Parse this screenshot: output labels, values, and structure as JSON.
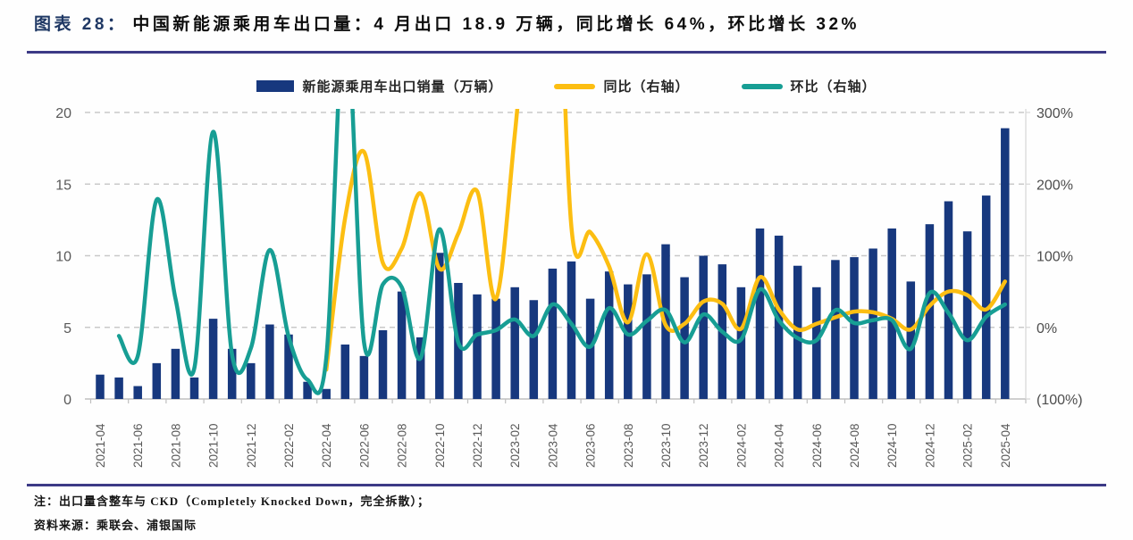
{
  "title": {
    "prefix": "图表 28：",
    "text": "中国新能源乘用车出口量：4 月出口 18.9 万辆，同比增长 64%，环比增长 32%"
  },
  "legend": {
    "items": [
      {
        "label": "新能源乘用车出口销量（万辆）",
        "marker": "bar",
        "color": "#17387E"
      },
      {
        "label": "同比（右轴）",
        "marker": "line",
        "color": "#FCBE12"
      },
      {
        "label": "环比（右轴）",
        "marker": "line",
        "color": "#179E94"
      }
    ]
  },
  "notes": [
    "注：出口量含整车与 CKD（Completely Knocked Down，完全拆散）；",
    "资料来源：乘联会、浦银国际"
  ],
  "chart_data": {
    "type": "bar",
    "title": "中国新能源乘用车出口量",
    "categories": [
      "2021-04",
      "2021-05",
      "2021-06",
      "2021-07",
      "2021-08",
      "2021-09",
      "2021-10",
      "2021-11",
      "2021-12",
      "2022-01",
      "2022-02",
      "2022-03",
      "2022-04",
      "2022-05",
      "2022-06",
      "2022-07",
      "2022-08",
      "2022-09",
      "2022-10",
      "2022-11",
      "2022-12",
      "2023-01",
      "2023-02",
      "2023-03",
      "2023-04",
      "2023-05",
      "2023-06",
      "2023-07",
      "2023-08",
      "2023-09",
      "2023-10",
      "2023-11",
      "2023-12",
      "2024-01",
      "2024-02",
      "2024-03",
      "2024-04",
      "2024-05",
      "2024-06",
      "2024-07",
      "2024-08",
      "2024-09",
      "2024-10",
      "2024-11",
      "2024-12",
      "2025-01",
      "2025-02",
      "2025-03",
      "2025-04"
    ],
    "x_label_step": 2,
    "series": [
      {
        "name": "新能源乘用车出口销量（万辆）",
        "type": "bar",
        "axis": "left",
        "color": "#17387E",
        "values": [
          1.7,
          1.5,
          0.9,
          2.5,
          3.5,
          1.5,
          5.6,
          3.5,
          2.5,
          5.2,
          4.5,
          1.2,
          0.7,
          3.8,
          3.0,
          4.8,
          7.5,
          4.3,
          10.2,
          8.1,
          7.3,
          7.0,
          7.8,
          6.9,
          9.1,
          9.6,
          7.0,
          8.9,
          8.0,
          8.7,
          10.8,
          8.5,
          10.0,
          9.4,
          7.8,
          11.9,
          11.4,
          9.3,
          7.8,
          9.7,
          9.9,
          10.5,
          11.9,
          8.2,
          12.2,
          13.8,
          11.7,
          14.2,
          18.9
        ]
      },
      {
        "name": "同比（右轴）",
        "type": "line",
        "axis": "right",
        "color": "#FCBE12",
        "unit": "%",
        "values": [
          null,
          null,
          null,
          null,
          null,
          null,
          null,
          null,
          null,
          null,
          null,
          null,
          -59,
          153,
          245,
          90,
          110,
          187,
          82,
          131,
          190,
          40,
          270,
          550,
          700,
          140,
          133,
          85,
          7,
          102,
          3,
          5,
          36,
          33,
          -2,
          70,
          25,
          -3,
          5,
          14,
          22,
          21,
          12,
          -3,
          30,
          50,
          45,
          25,
          64
        ]
      },
      {
        "name": "环比（右轴）",
        "type": "line",
        "axis": "right",
        "color": "#179E94",
        "unit": "%",
        "values": [
          null,
          -12,
          -40,
          178,
          40,
          -57,
          273,
          -38,
          -29,
          108,
          -13,
          -73,
          -42,
          443,
          -21,
          60,
          56,
          -43,
          137,
          -21,
          -10,
          -4,
          11,
          -12,
          32,
          5,
          -27,
          27,
          -10,
          9,
          24,
          -21,
          18,
          -6,
          -17,
          53,
          10,
          -15,
          -18,
          24,
          6,
          10,
          10,
          -30,
          48,
          20,
          -18,
          15,
          32
        ]
      }
    ],
    "left_axis": {
      "min": 0,
      "max": 20,
      "ticks": [
        0,
        5,
        10,
        15,
        20
      ],
      "tick_labels": [
        "0",
        "5",
        "10",
        "15",
        "20"
      ]
    },
    "right_axis": {
      "min": -100,
      "max": 300,
      "ticks": [
        -100,
        0,
        100,
        200,
        300
      ],
      "tick_labels": [
        "(100%)",
        "0%",
        "100%",
        "200%",
        "300%"
      ]
    },
    "grid": "dashed-horizontal",
    "legend_position": "top"
  },
  "style": {
    "grid_color": "#c9c9c9",
    "axis_color": "#bfbfbf",
    "left_tick_color": "#595959",
    "right_tick_color": "#4d4d4d",
    "x_tick_color": "#595959"
  }
}
